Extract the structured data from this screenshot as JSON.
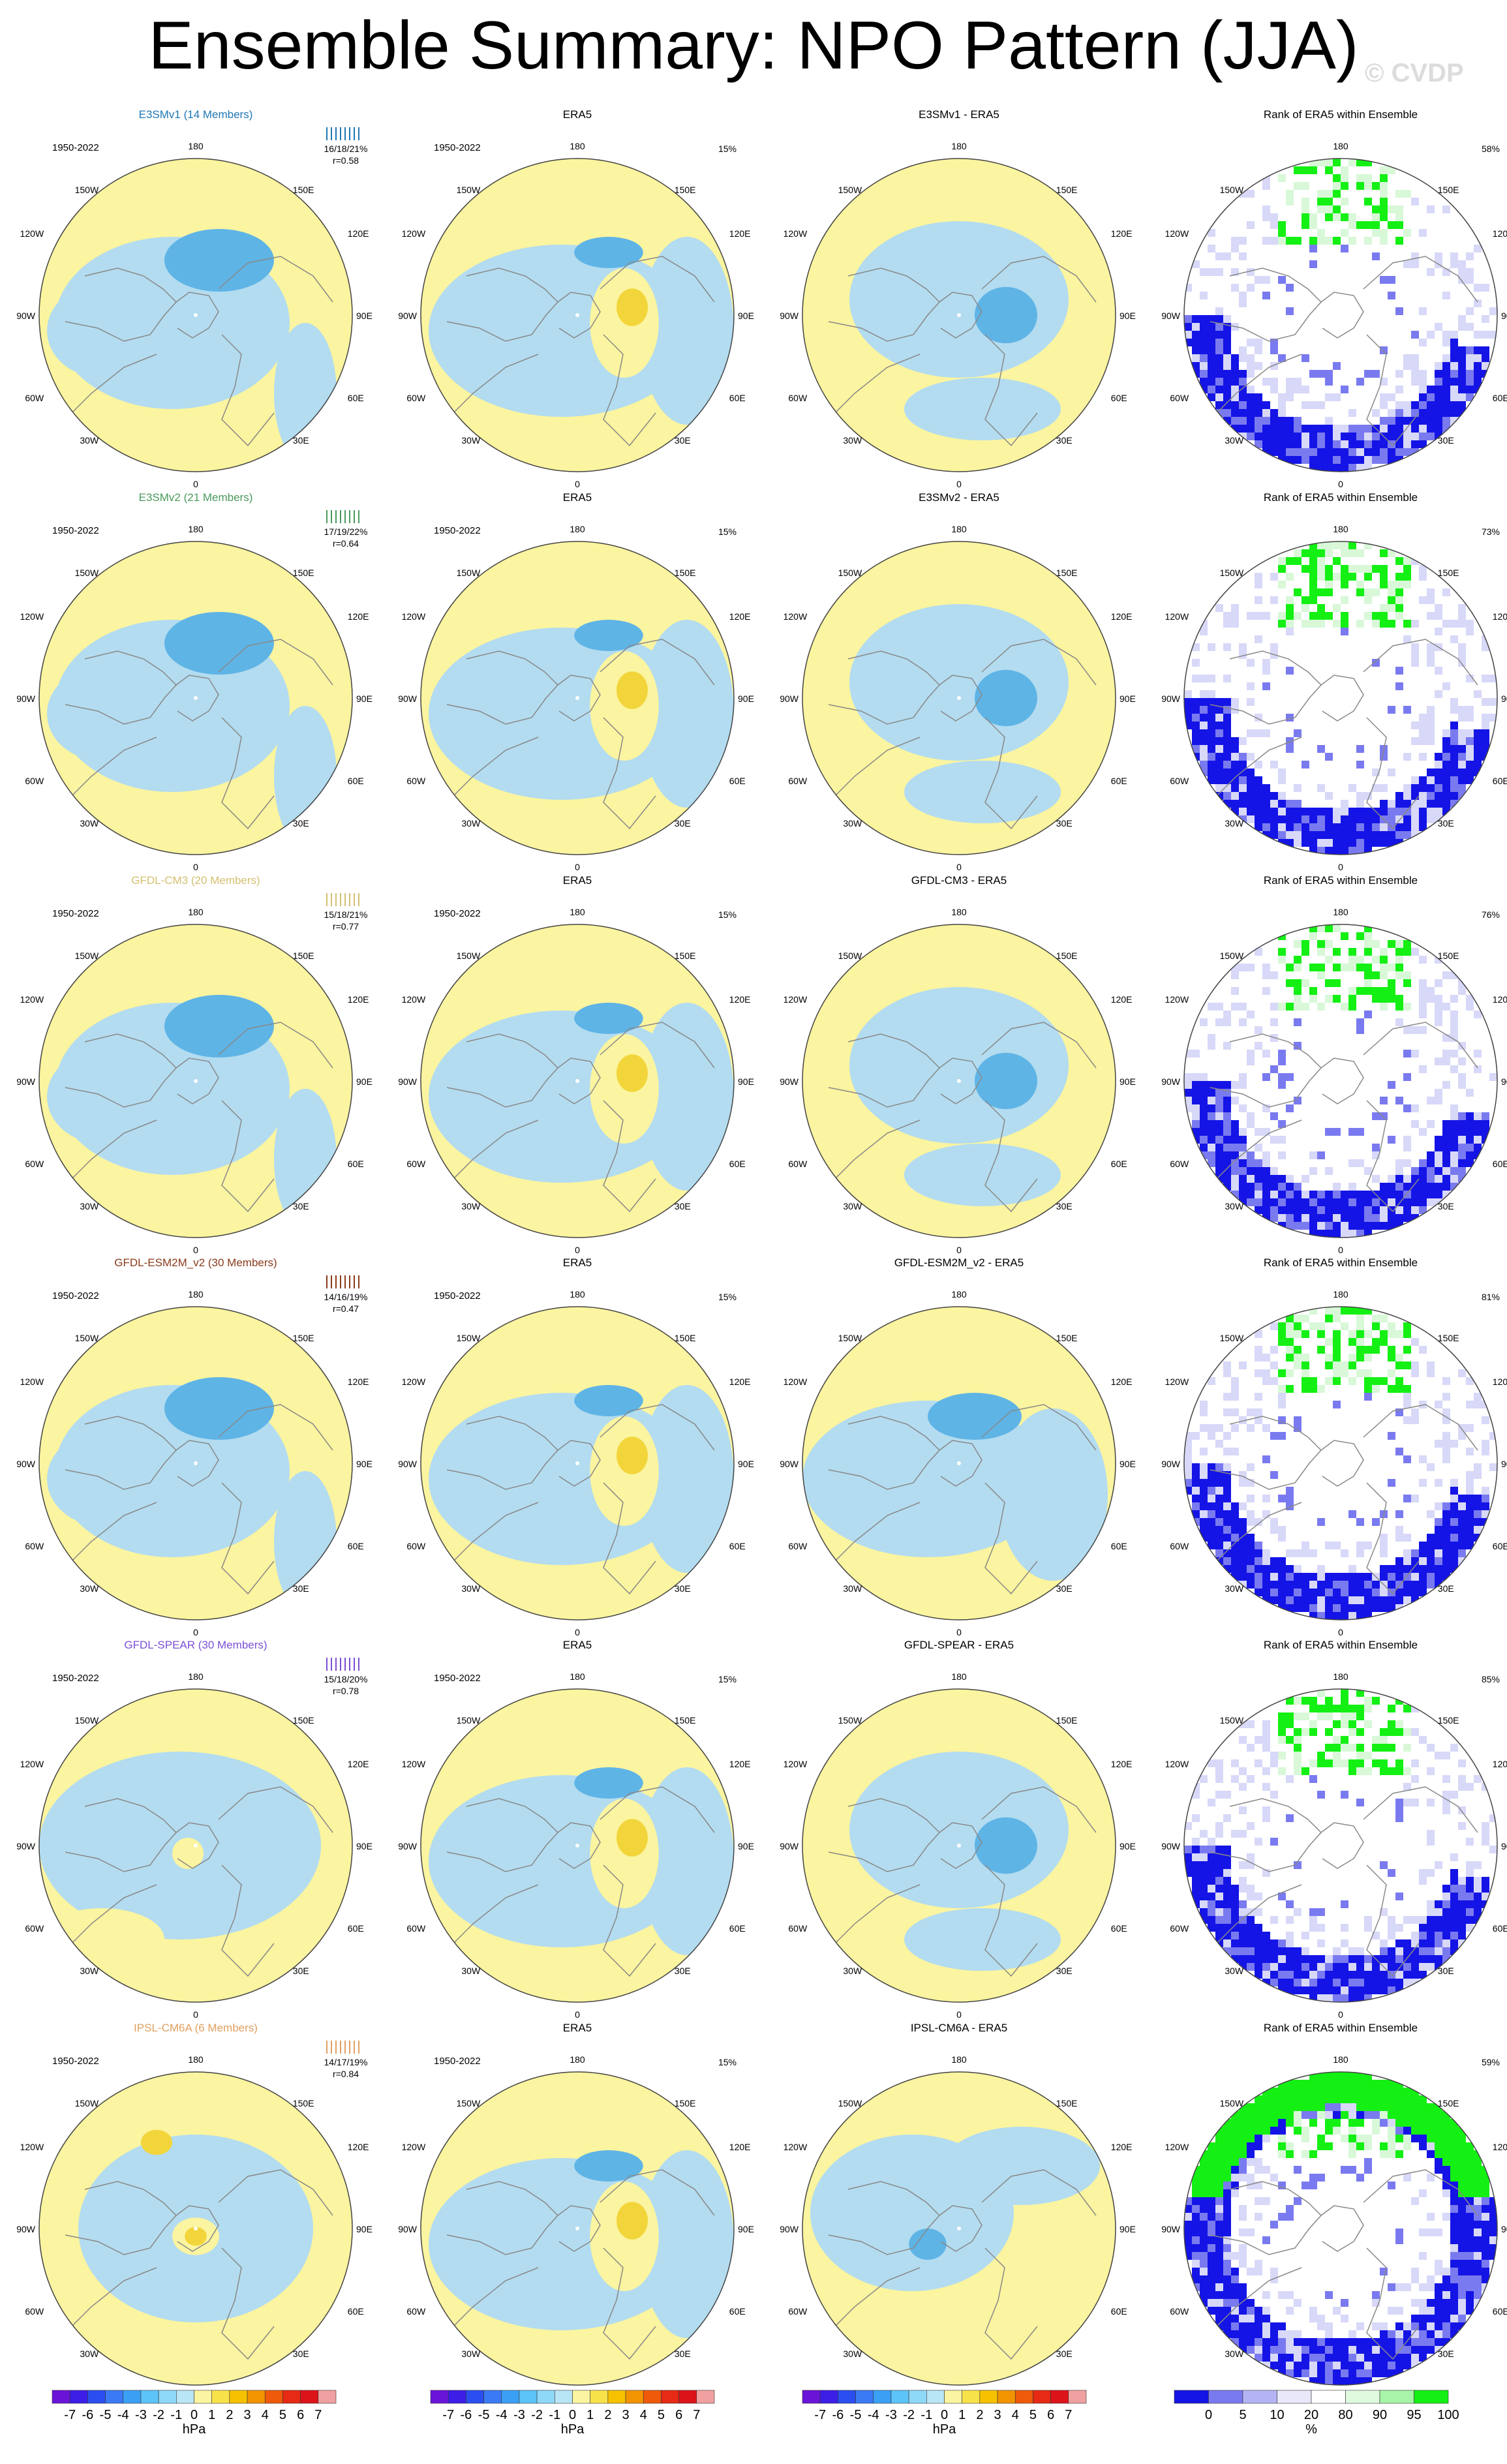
{
  "title": "Ensemble Summary: NPO Pattern (JJA)",
  "copyright": "© CVDP",
  "period": "1950-2022",
  "lon_labels": {
    "top": "180",
    "tl": "150W",
    "tr": "150E",
    "ul": "120W",
    "ur": "120E",
    "l": "90W",
    "r": "90E",
    "ll": "60W",
    "lr": "60E",
    "bl": "30W",
    "br": "30E",
    "bottom": "0"
  },
  "colors": {
    "positive_fill": "#fbf4a0",
    "negative_fill": "#b3dcf0",
    "mid_negative": "#5fb4e6",
    "strong_negative": "#2aa6ee",
    "mid_positive": "#f2d53a",
    "strong_positive": "#f5b400",
    "rank_blue_dark": "#1414e6",
    "rank_blue_mid": "#7a7af0",
    "rank_blue_light": "#d8d8f8",
    "rank_green_light": "#d8f8d8",
    "rank_green_mid": "#8af08a",
    "rank_green_dark": "#14f014",
    "coast": "#888888"
  },
  "rows": [
    {
      "model": "E3SMv1 (14 Members)",
      "model_color": "#1f77b4",
      "stats": "16/18/21%",
      "corr": "r=0.58",
      "era_pct": "15%",
      "diff_title": "E3SMv1 - ERA5",
      "rank_title": "Rank of ERA5 within Ensemble",
      "rank_pct": "58%"
    },
    {
      "model": "E3SMv2 (21 Members)",
      "model_color": "#4a9a5c",
      "stats": "17/19/22%",
      "corr": "r=0.64",
      "era_pct": "15%",
      "diff_title": "E3SMv2 - ERA5",
      "rank_title": "Rank of ERA5 within Ensemble",
      "rank_pct": "73%"
    },
    {
      "model": "GFDL-CM3 (20 Members)",
      "model_color": "#d4c070",
      "stats": "15/18/21%",
      "corr": "r=0.77",
      "era_pct": "15%",
      "diff_title": "GFDL-CM3 - ERA5",
      "rank_title": "Rank of ERA5 within Ensemble",
      "rank_pct": "76%"
    },
    {
      "model": "GFDL-ESM2M_v2 (30 Members)",
      "model_color": "#8b3a1a",
      "stats": "14/16/19%",
      "corr": "r=0.47",
      "era_pct": "15%",
      "diff_title": "GFDL-ESM2M_v2 - ERA5",
      "rank_title": "Rank of ERA5 within Ensemble",
      "rank_pct": "81%"
    },
    {
      "model": "GFDL-SPEAR (30 Members)",
      "model_color": "#7b4fd6",
      "stats": "15/18/20%",
      "corr": "r=0.78",
      "era_pct": "15%",
      "diff_title": "GFDL-SPEAR - ERA5",
      "rank_title": "Rank of ERA5 within Ensemble",
      "rank_pct": "85%"
    },
    {
      "model": "IPSL-CM6A (6 Members)",
      "model_color": "#e0a060",
      "stats": "14/17/19%",
      "corr": "r=0.84",
      "era_pct": "15%",
      "diff_title": "IPSL-CM6A - ERA5",
      "rank_title": "Rank of ERA5 within Ensemble",
      "rank_pct": "59%"
    }
  ],
  "era_title": "ERA5",
  "colorbar_hpa": {
    "labels": [
      "-7",
      "-6",
      "-5",
      "-4",
      "-3",
      "-2",
      "-1",
      "0",
      "1",
      "2",
      "3",
      "4",
      "5",
      "6",
      "7"
    ],
    "colors": [
      "#6a14d8",
      "#3c1ee6",
      "#2a4ef0",
      "#3a7af4",
      "#3aa0f4",
      "#5cc4f8",
      "#8ed8f8",
      "#b9e6f6",
      "#fbf4a0",
      "#f8e24a",
      "#f6c200",
      "#f29400",
      "#ee5a0a",
      "#e62a14",
      "#dc141a",
      "#f0a0a0"
    ],
    "unit": "hPa"
  },
  "colorbar_rank": {
    "labels": [
      "0",
      "5",
      "10",
      "20",
      "80",
      "90",
      "95",
      "100"
    ],
    "colors": [
      "#1414e6",
      "#7a7af0",
      "#b4b4f4",
      "#e8e8fa",
      "#ffffff",
      "#e0fae0",
      "#a8f4a8",
      "#14f014"
    ],
    "unit": "%"
  }
}
